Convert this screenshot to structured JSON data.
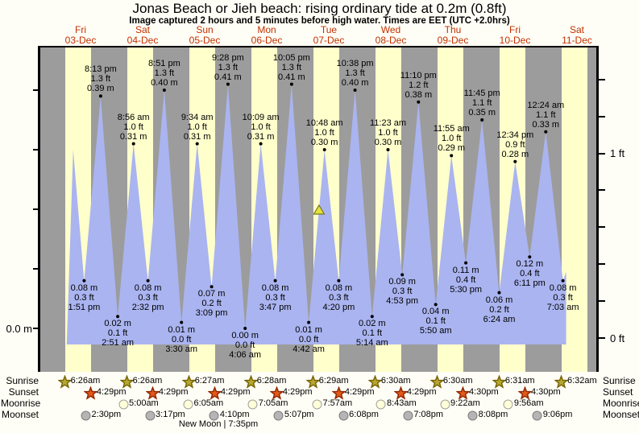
{
  "title": "Jonas Beach or Jieh beach: rising  ordinary tide at 0.2m (0.8ft)",
  "subtitle": "Image captured 2 hours and 5 minutes before high water. Times are EET (UTC +2.0hrs)",
  "axes": {
    "left_label": "0.0 m",
    "right_labels": [
      "1 ft",
      "0 ft"
    ],
    "left_ticks_m": [
      0.0,
      0.1,
      0.2,
      0.3,
      0.4
    ],
    "right_ticks_ft": [
      0.0,
      0.2,
      0.4,
      0.6,
      0.8,
      1.0,
      1.2,
      1.4
    ]
  },
  "colors": {
    "daylight_band": "#ffffcc",
    "night_band": "#9c9c9c",
    "water": "#aab4f0",
    "day_label": "#c33000",
    "marker_fill": "#e6e23c",
    "marker_stroke": "#77771f",
    "sunrise_fill": "#b5a832",
    "sunrise_stroke": "#756000",
    "sunset_fill": "#e2591a",
    "sunset_stroke": "#8e2500",
    "moonrise_fill": "#ffffd8",
    "moonrise_stroke": "#a0a0a0",
    "moonset_fill": "#b5b5b5",
    "moonset_stroke": "#7d7d7d"
  },
  "chart_data": {
    "type": "area",
    "title": "Jonas Beach or Jieh beach tide heights, 03-Dec to 11-Dec",
    "ylabel_left": "m",
    "ylabel_right": "ft",
    "ylim_m": [
      -0.03,
      0.47
    ],
    "grid": false,
    "days": [
      {
        "name": "Fri",
        "date": "03-Dec"
      },
      {
        "name": "Sat",
        "date": "04-Dec"
      },
      {
        "name": "Sun",
        "date": "05-Dec"
      },
      {
        "name": "Mon",
        "date": "06-Dec"
      },
      {
        "name": "Tue",
        "date": "07-Dec"
      },
      {
        "name": "Wed",
        "date": "08-Dec"
      },
      {
        "name": "Thu",
        "date": "09-Dec"
      },
      {
        "name": "Fri",
        "date": "10-Dec"
      },
      {
        "name": "Sat",
        "date": "11-Dec"
      }
    ],
    "high_tides": [
      {
        "day": 0,
        "time": "8:13 pm",
        "ft": "1.3",
        "m": "0.39"
      },
      {
        "day": 1,
        "time": "8:56 am",
        "ft": "1.0",
        "m": "0.31"
      },
      {
        "day": 1,
        "time": "8:51 pm",
        "ft": "1.3",
        "m": "0.40"
      },
      {
        "day": 2,
        "time": "9:34 am",
        "ft": "1.0",
        "m": "0.31"
      },
      {
        "day": 2,
        "time": "9:28 pm",
        "ft": "1.3",
        "m": "0.41"
      },
      {
        "day": 3,
        "time": "10:09 am",
        "ft": "1.0",
        "m": "0.31"
      },
      {
        "day": 3,
        "time": "10:05 pm",
        "ft": "1.3",
        "m": "0.41"
      },
      {
        "day": 4,
        "time": "10:48 am",
        "ft": "1.0",
        "m": "0.30"
      },
      {
        "day": 4,
        "time": "10:38 pm",
        "ft": "1.3",
        "m": "0.40"
      },
      {
        "day": 5,
        "time": "11:23 am",
        "ft": "1.0",
        "m": "0.30"
      },
      {
        "day": 5,
        "time": "11:10 pm",
        "ft": "1.2",
        "m": "0.38"
      },
      {
        "day": 6,
        "time": "11:55 am",
        "ft": "1.0",
        "m": "0.29"
      },
      {
        "day": 6,
        "time": "11:45 pm",
        "ft": "1.1",
        "m": "0.35"
      },
      {
        "day": 7,
        "time": "12:34 pm",
        "ft": "0.9",
        "m": "0.28"
      },
      {
        "day": 8,
        "time": "12:24 am",
        "ft": "1.1",
        "m": "0.33"
      }
    ],
    "low_tides": [
      {
        "day": 0,
        "time": "1:51 pm",
        "ft": "0.3",
        "m": "0.08"
      },
      {
        "day": 1,
        "time": "2:51 am",
        "ft": "0.1",
        "m": "0.02"
      },
      {
        "day": 1,
        "time": "2:32 pm",
        "ft": "0.3",
        "m": "0.08"
      },
      {
        "day": 2,
        "time": "3:30 am",
        "ft": "0.0",
        "m": "0.01"
      },
      {
        "day": 2,
        "time": "3:09 pm",
        "ft": "0.2",
        "m": "0.07"
      },
      {
        "day": 3,
        "time": "4:06 am",
        "ft": "0.0",
        "m": "0.00"
      },
      {
        "day": 3,
        "time": "3:47 pm",
        "ft": "0.3",
        "m": "0.08"
      },
      {
        "day": 4,
        "time": "4:42 am",
        "ft": "0.0",
        "m": "0.01"
      },
      {
        "day": 4,
        "time": "4:20 pm",
        "ft": "0.3",
        "m": "0.08"
      },
      {
        "day": 5,
        "time": "5:14 am",
        "ft": "0.1",
        "m": "0.02"
      },
      {
        "day": 5,
        "time": "4:53 pm",
        "ft": "0.3",
        "m": "0.09"
      },
      {
        "day": 6,
        "time": "5:50 am",
        "ft": "0.1",
        "m": "0.04"
      },
      {
        "day": 6,
        "time": "5:30 pm",
        "ft": "0.4",
        "m": "0.11"
      },
      {
        "day": 7,
        "time": "6:24 am",
        "ft": "0.2",
        "m": "0.06"
      },
      {
        "day": 7,
        "time": "6:11 pm",
        "ft": "0.4",
        "m": "0.12"
      },
      {
        "day": 8,
        "time": "7:03 am",
        "ft": "0.3",
        "m": "0.08"
      }
    ],
    "lead_in_peak": {
      "day": 0,
      "hour": 9.6,
      "height_m": 0.3
    },
    "current_time_marker": {
      "day": 4,
      "hour": 8.7,
      "height_m": 0.2
    },
    "sun_moon": {
      "row_labels": [
        "Sunrise",
        "Sunset",
        "Moonrise",
        "Moonset"
      ],
      "sunrise": [
        {
          "day": 0,
          "time": "6:26am"
        },
        {
          "day": 1,
          "time": "6:26am"
        },
        {
          "day": 2,
          "time": "6:27am"
        },
        {
          "day": 3,
          "time": "6:28am"
        },
        {
          "day": 4,
          "time": "6:29am"
        },
        {
          "day": 5,
          "time": "6:30am"
        },
        {
          "day": 6,
          "time": "6:30am"
        },
        {
          "day": 7,
          "time": "6:31am"
        },
        {
          "day": 8,
          "time": "6:32am"
        }
      ],
      "sunset": [
        {
          "day": 0,
          "time": "4:29pm"
        },
        {
          "day": 1,
          "time": "4:29pm"
        },
        {
          "day": 2,
          "time": "4:29pm"
        },
        {
          "day": 3,
          "time": "4:29pm"
        },
        {
          "day": 4,
          "time": "4:29pm"
        },
        {
          "day": 5,
          "time": "4:29pm"
        },
        {
          "day": 6,
          "time": "4:30pm"
        },
        {
          "day": 7,
          "time": "4:30pm"
        }
      ],
      "moonrise": [
        {
          "day": 1,
          "time": "5:00am"
        },
        {
          "day": 2,
          "time": "6:05am"
        },
        {
          "day": 3,
          "time": "7:05am"
        },
        {
          "day": 4,
          "time": "7:57am"
        },
        {
          "day": 5,
          "time": "8:43am"
        },
        {
          "day": 6,
          "time": "9:22am"
        },
        {
          "day": 7,
          "time": "9:56am"
        }
      ],
      "moonset": [
        {
          "day": 0,
          "time": "2:30pm"
        },
        {
          "day": 1,
          "time": "3:17pm"
        },
        {
          "day": 2,
          "time": "4:10pm"
        },
        {
          "day": 3,
          "time": "5:07pm"
        },
        {
          "day": 4,
          "time": "6:08pm"
        },
        {
          "day": 5,
          "time": "7:08pm"
        },
        {
          "day": 6,
          "time": "8:08pm"
        },
        {
          "day": 7,
          "time": "9:06pm"
        }
      ],
      "moon_phase": "New Moon | 7:35pm"
    }
  }
}
